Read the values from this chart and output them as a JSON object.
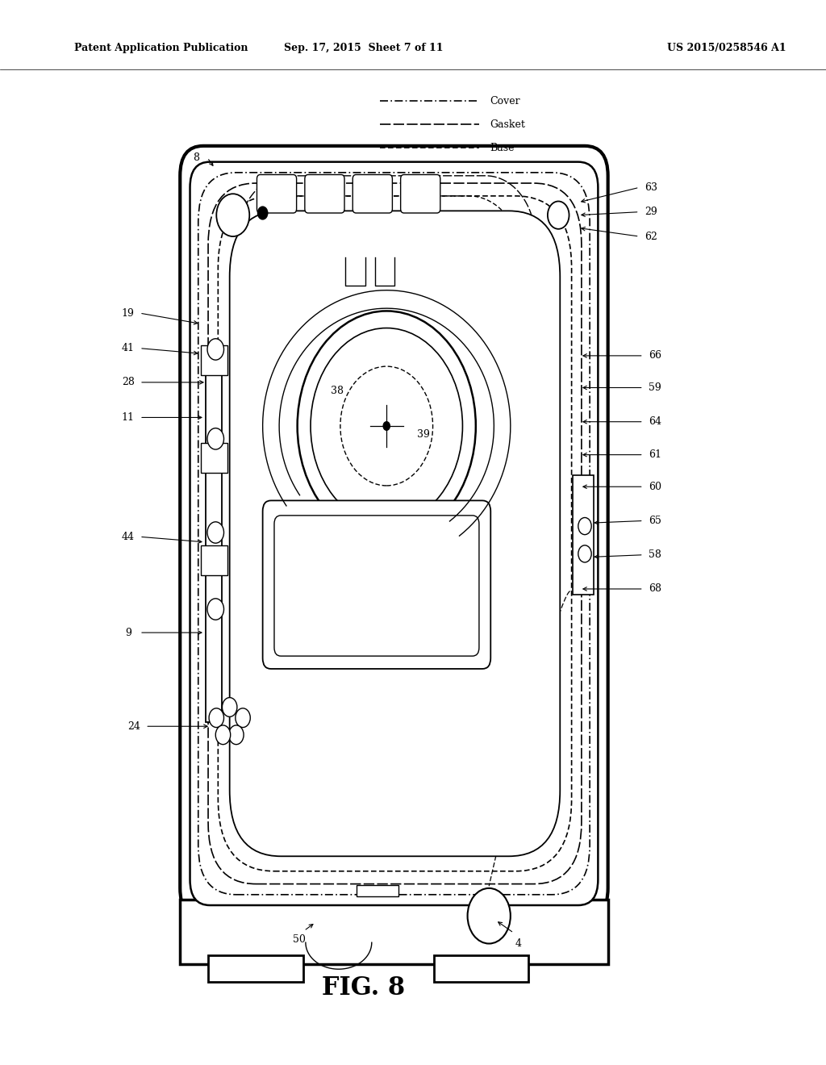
{
  "title_left": "Patent Application Publication",
  "title_center": "Sep. 17, 2015  Sheet 7 of 11",
  "title_right": "US 2015/0258546 A1",
  "fig_label": "FIG. 8",
  "bg_color": "#ffffff",
  "line_color": "#000000"
}
